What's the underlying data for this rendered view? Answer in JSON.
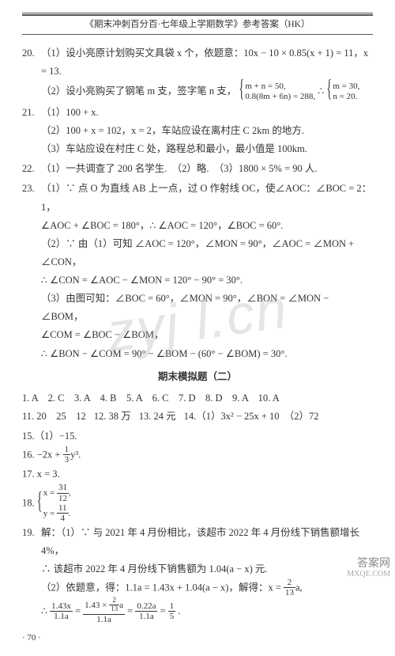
{
  "header": "《期末冲刺百分百·七年级上学期数学》参考答案（HK）",
  "q20": {
    "num": "20.",
    "p1": "（1）设小亮原计划购买文具袋 x 个，依题意：10x − 10 × 0.85(x + 1) = 11，x = 13.",
    "p2a": "（2）设小亮购买了钢笔 m 支，签字笔 n 支，",
    "p2b_top": "m + n = 50,",
    "p2b_bot": "0.8(8m + 6n) = 288,",
    "p2c": "∴",
    "p2d_top": "m = 30,",
    "p2d_bot": "n = 20."
  },
  "q21": {
    "num": "21.",
    "p1": "（1）100 + x.",
    "p2": "（2）100 + x = 102，x = 2，车站应设在离村庄 C 2km 的地方.",
    "p3": "（3）车站应设在村庄 C 处，路程总和最小，最小值是 100km."
  },
  "q22": {
    "num": "22.",
    "p": "（1）一共调查了 200 名学生.　（2）略.　（3）1800 × 5% = 90 人."
  },
  "q23": {
    "num": "23.",
    "p1": "（1）∵ 点 O 为直线 AB 上一点，过 O 作射线 OC，使∠AOC：∠BOC = 2：1，",
    "p1b": "∠AOC + ∠BOC = 180°，∴ ∠AOC = 120°，∠BOC = 60°.",
    "p2": "（2）∵ 由（1）可知 ∠AOC = 120°，∠MON = 90°，∠AOC = ∠MON + ∠CON，",
    "p2b": "∴ ∠CON = ∠AOC − ∠MON = 120° − 90° = 30°.",
    "p3": "（3）由图可知：∠BOC = 60°，∠MON = 90°，∠BON = ∠MON − ∠BOM，",
    "p3b": "∠COM = ∠BOC − ∠BOM，",
    "p3c": "∴ ∠BON − ∠COM = 90° − ∠BOM − (60° − ∠BOM) = 30°."
  },
  "section_title": "期末模拟题（二）",
  "mc": "1. A　2. C　3. A　4. B　5. A　6. C　7. D　8. D　9. A　10. A",
  "fi": {
    "a": "11. 20　25　12",
    "b": "12. 38 万",
    "c": "13. 24 元",
    "d": "14.（1）3x² − 25x + 10　（2）72"
  },
  "q15": "15.（1）−15.",
  "q16": {
    "num": "16.",
    "expr_pre": "−2x + ",
    "frac_n": "1",
    "frac_d": "3",
    "expr_post": "y³."
  },
  "q17": "17. x = 3.",
  "q18": {
    "num": "18.",
    "row1_l": "x = ",
    "row1_n": "31",
    "row1_d": "12",
    "row1_t": ",",
    "row2_l": "y = ",
    "row2_n": "11",
    "row2_d": "4",
    "row2_t": "."
  },
  "q19": {
    "num": "19.",
    "p1": "解：（1）∵ 与 2021 年 4 月份相比，该超市 2022 年 4 月份线下销售额增长 4%，",
    "p1b": "∴ 该超市 2022 年 4 月份线下销售额为 1.04(a − x) 元.",
    "p2a": "（2）依题意，得：1.1a = 1.43x + 1.04(a − x)，解得：x = ",
    "p2a_n": "2",
    "p2a_d": "13",
    "p2a_t": "a,",
    "p2b_pre": "∴ ",
    "p2b_f1n": "1.43x",
    "p2b_f1d": "1.1a",
    "p2b_mid1": " = ",
    "p2b_f2n_l": "1.43 × ",
    "p2b_f2n_fn": "2",
    "p2b_f2n_fd": "13",
    "p2b_f2n_r": "a",
    "p2b_f2d": "1.1a",
    "p2b_mid2": " = ",
    "p2b_f3n": "0.22a",
    "p2b_f3d": "1.1a",
    "p2b_mid3": " = ",
    "p2b_f4n": "1",
    "p2b_f4d": "5",
    "p2b_end": "."
  },
  "pagenum": "· 70 ·",
  "watermark": "zyj l.cn",
  "corner_top": "答案网",
  "corner_bot": "MXQE.COM"
}
